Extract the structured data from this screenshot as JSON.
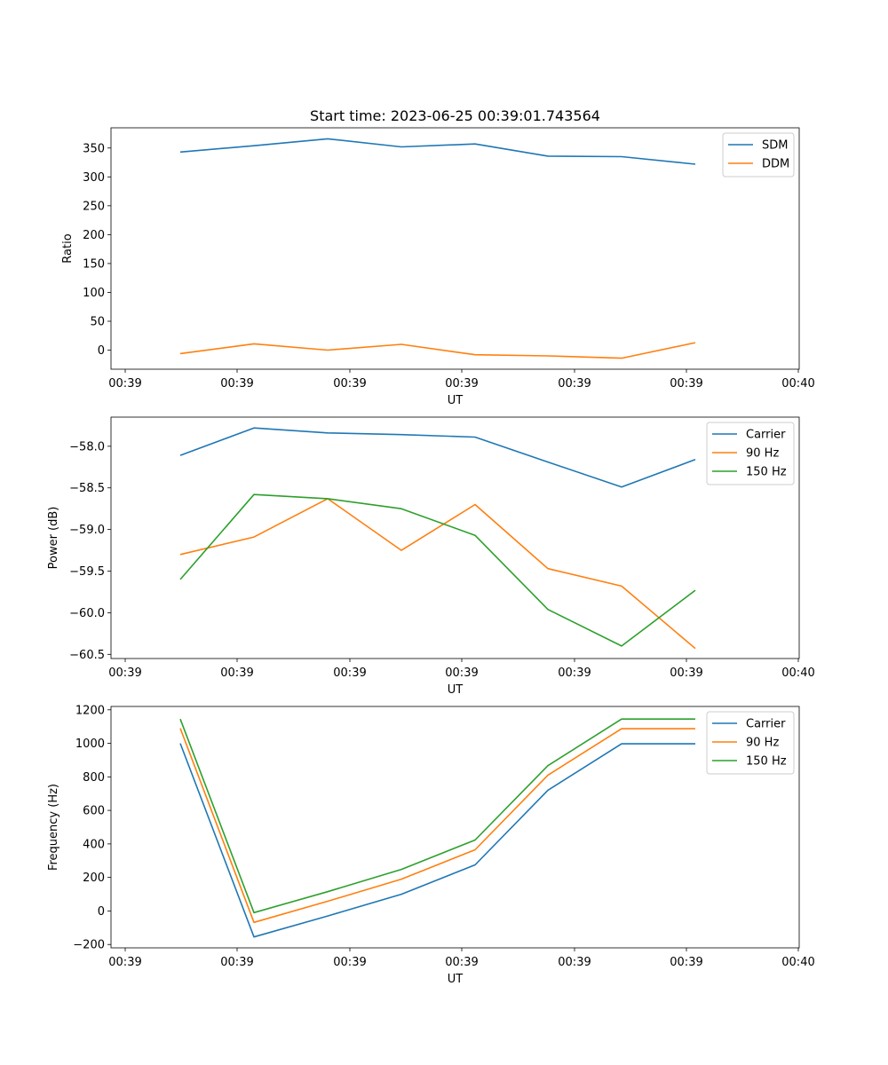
{
  "chart_data": [
    {
      "type": "line",
      "title": "Start time: 2023-06-25 00:39:01.743564",
      "xlabel": "UT",
      "ylabel": "Ratio",
      "x_tick_labels": [
        "00:39",
        "00:39",
        "00:39",
        "00:39",
        "00:39",
        "00:39",
        "00:40"
      ],
      "y_ticks": [
        0,
        50,
        100,
        150,
        200,
        250,
        300,
        350
      ],
      "ylim": [
        -33,
        385
      ],
      "legend": "top-right",
      "grid": false,
      "series": [
        {
          "name": "SDM",
          "color": "#1f77b4",
          "values": [
            343,
            354,
            366,
            352,
            357,
            336,
            335,
            322
          ]
        },
        {
          "name": "DDM",
          "color": "#ff7f0e",
          "values": [
            -6,
            11,
            0,
            10,
            -8,
            -10,
            -14,
            13
          ]
        }
      ]
    },
    {
      "type": "line",
      "title": "",
      "xlabel": "UT",
      "ylabel": "Power (dB)",
      "x_tick_labels": [
        "00:39",
        "00:39",
        "00:39",
        "00:39",
        "00:39",
        "00:39",
        "00:40"
      ],
      "y_ticks": [
        -58.0,
        -58.5,
        -59.0,
        -59.5,
        -60.0,
        -60.5
      ],
      "y_tick_labels": [
        "−58.0",
        "−58.5",
        "−59.0",
        "−59.5",
        "−60.0",
        "−60.5"
      ],
      "ylim": [
        -60.55,
        -57.65
      ],
      "legend": "top-right",
      "grid": false,
      "series": [
        {
          "name": "Carrier",
          "color": "#1f77b4",
          "values": [
            -58.11,
            -57.78,
            -57.84,
            -57.86,
            -57.89,
            -58.19,
            -58.49,
            -58.16
          ]
        },
        {
          "name": "90 Hz",
          "color": "#ff7f0e",
          "values": [
            -59.3,
            -59.09,
            -58.63,
            -59.25,
            -58.7,
            -59.47,
            -59.68,
            -60.43
          ]
        },
        {
          "name": "150 Hz",
          "color": "#2ca02c",
          "values": [
            -59.6,
            -58.58,
            -58.63,
            -58.75,
            -59.07,
            -59.96,
            -60.4,
            -59.73
          ]
        }
      ]
    },
    {
      "type": "line",
      "title": "",
      "xlabel": "UT",
      "ylabel": "Frequency (Hz)",
      "x_tick_labels": [
        "00:39",
        "00:39",
        "00:39",
        "00:39",
        "00:39",
        "00:39",
        "00:40"
      ],
      "y_ticks": [
        -200,
        0,
        200,
        400,
        600,
        800,
        1000,
        1200
      ],
      "y_tick_labels": [
        "−200",
        "0",
        "200",
        "400",
        "600",
        "800",
        "1000",
        "1200"
      ],
      "ylim": [
        -220,
        1220
      ],
      "legend": "top-right",
      "grid": false,
      "series": [
        {
          "name": "Carrier",
          "color": "#1f77b4",
          "values": [
            1000,
            -155,
            -30,
            100,
            275,
            720,
            997,
            997
          ]
        },
        {
          "name": "90 Hz",
          "color": "#ff7f0e",
          "values": [
            1090,
            -68,
            58,
            190,
            365,
            810,
            1087,
            1087
          ]
        },
        {
          "name": "150 Hz",
          "color": "#2ca02c",
          "values": [
            1145,
            -10,
            115,
            248,
            423,
            867,
            1145,
            1145
          ]
        }
      ]
    }
  ]
}
